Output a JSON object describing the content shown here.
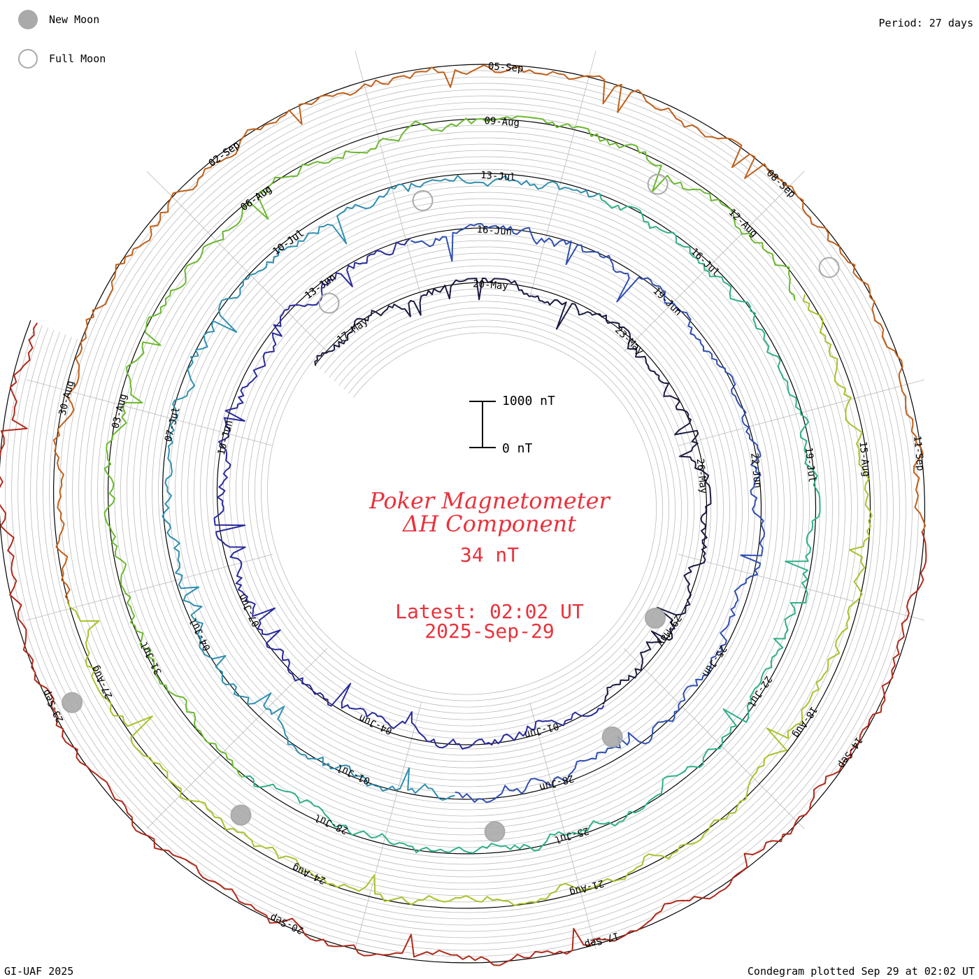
{
  "legend": {
    "new_moon": "New Moon",
    "full_moon": "Full Moon"
  },
  "period": "Period: 27 days",
  "center": {
    "title_line1": "Poker Magnetometer",
    "title_line2": "ΔH Component",
    "current_value": "34 nT",
    "latest_line1": "Latest: 02:02 UT",
    "latest_line2": "2025-Sep-29"
  },
  "scale": {
    "top_label": "1000 nT",
    "bottom_label": "0 nT"
  },
  "footer": {
    "left": "GI-UAF 2025",
    "right": "Condegram plotted Sep 29 at 02:02 UT"
  },
  "colors": {
    "title": "#e8323c",
    "grid": "#bbbbbb",
    "baseline": "#000000",
    "moon_fill": "#aaaaaa",
    "cycles": [
      "#1a1a40",
      "#2a2a9c",
      "#2f4fb0",
      "#2f8fb0",
      "#2fb08a",
      "#6ab82f",
      "#a8c22a",
      "#c0601a",
      "#b02a1a"
    ]
  },
  "chart_data": {
    "type": "condegram",
    "title": "Poker Magnetometer ΔH Component",
    "units": "nT",
    "period_days": 27,
    "scale_nT": [
      0,
      1000
    ],
    "latest_value_nT": 34,
    "latest_time": "2025-09-29 02:02 UT",
    "cycles": [
      {
        "index": 1,
        "start": "2025-05-14",
        "dates": [
          "17-May",
          "20-May",
          "23-May",
          "26-May",
          "29-May",
          "01-Jun",
          "04-Jun",
          "07-Jun",
          "10-Jun",
          "13-Jun"
        ]
      },
      {
        "index": 2,
        "start": "2025-06-10",
        "dates": [
          "13-Jun",
          "16-Jun",
          "19-Jun",
          "22-Jun",
          "25-Jun",
          "28-Jun",
          "01-Jul",
          "04-Jul",
          "07-Jul",
          "10-Jul"
        ]
      },
      {
        "index": 3,
        "start": "2025-07-07",
        "dates": [
          "10-Jul",
          "13-Jul",
          "16-Jul",
          "19-Jul",
          "22-Jul",
          "25-Jul",
          "28-Jul",
          "31-Jul",
          "03-Aug",
          "06-Aug"
        ]
      },
      {
        "index": 4,
        "start": "2025-08-03",
        "dates": [
          "06-Aug",
          "09-Aug",
          "12-Aug",
          "15-Aug",
          "18-Aug",
          "21-Aug",
          "24-Aug",
          "27-Aug",
          "30-Aug",
          "02-Sep"
        ]
      },
      {
        "index": 5,
        "start": "2025-08-30",
        "dates": [
          "02-Sep",
          "05-Sep",
          "08-Sep",
          "11-Sep",
          "14-Sep",
          "17-Sep",
          "20-Sep",
          "23-Sep"
        ]
      }
    ],
    "new_moons": [
      "2025-05-27",
      "2025-06-25",
      "2025-07-24",
      "2025-08-23",
      "2025-09-21"
    ],
    "full_moons": [
      "2025-06-11",
      "2025-07-10",
      "2025-08-09",
      "2025-09-07"
    ]
  }
}
